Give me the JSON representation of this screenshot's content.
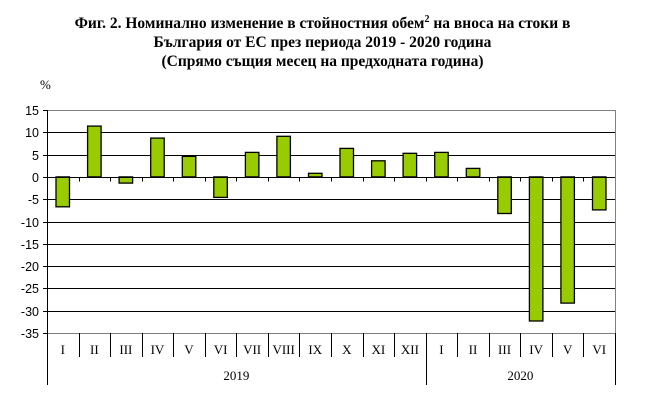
{
  "title": {
    "line1_pre": "Фиг. 2. Номинално изменение в стойностния обем",
    "line1_sup": "2",
    "line1_post": " на вноса на стоки в",
    "line2": "България от ЕС през периода 2019 - 2020 година",
    "line3": "(Спрямо същия месец на предходната година)"
  },
  "unit_label": "%",
  "colors": {
    "bar_fill": "#99CC00",
    "bar_stroke": "#000000",
    "grid": "#000000",
    "frame": "#808080"
  },
  "chart_data": {
    "type": "bar",
    "title": "Фиг. 2. Номинално изменение в стойностния обем² на вноса на стоки в България от ЕС през периода 2019 - 2020 година (Спрямо същия месец на предходната година)",
    "xlabel": "",
    "ylabel": "%",
    "ylim": [
      -35,
      15
    ],
    "yticks": [
      15,
      10,
      5,
      0,
      -5,
      -10,
      -15,
      -20,
      -25,
      -30,
      -35
    ],
    "grid": true,
    "legend": null,
    "groups": [
      {
        "label": "2019",
        "start": 0,
        "count": 12
      },
      {
        "label": "2020",
        "start": 12,
        "count": 6
      }
    ],
    "categories": [
      "I",
      "II",
      "III",
      "IV",
      "V",
      "VI",
      "VII",
      "VIII",
      "IX",
      "X",
      "XI",
      "XII",
      "I",
      "II",
      "III",
      "IV",
      "V",
      "VI"
    ],
    "values": [
      -6.7,
      11.4,
      -1.4,
      8.7,
      4.6,
      -4.6,
      5.5,
      9.1,
      0.8,
      6.4,
      3.6,
      5.3,
      5.5,
      1.9,
      -8.2,
      -32.3,
      -28.3,
      -7.4
    ]
  }
}
